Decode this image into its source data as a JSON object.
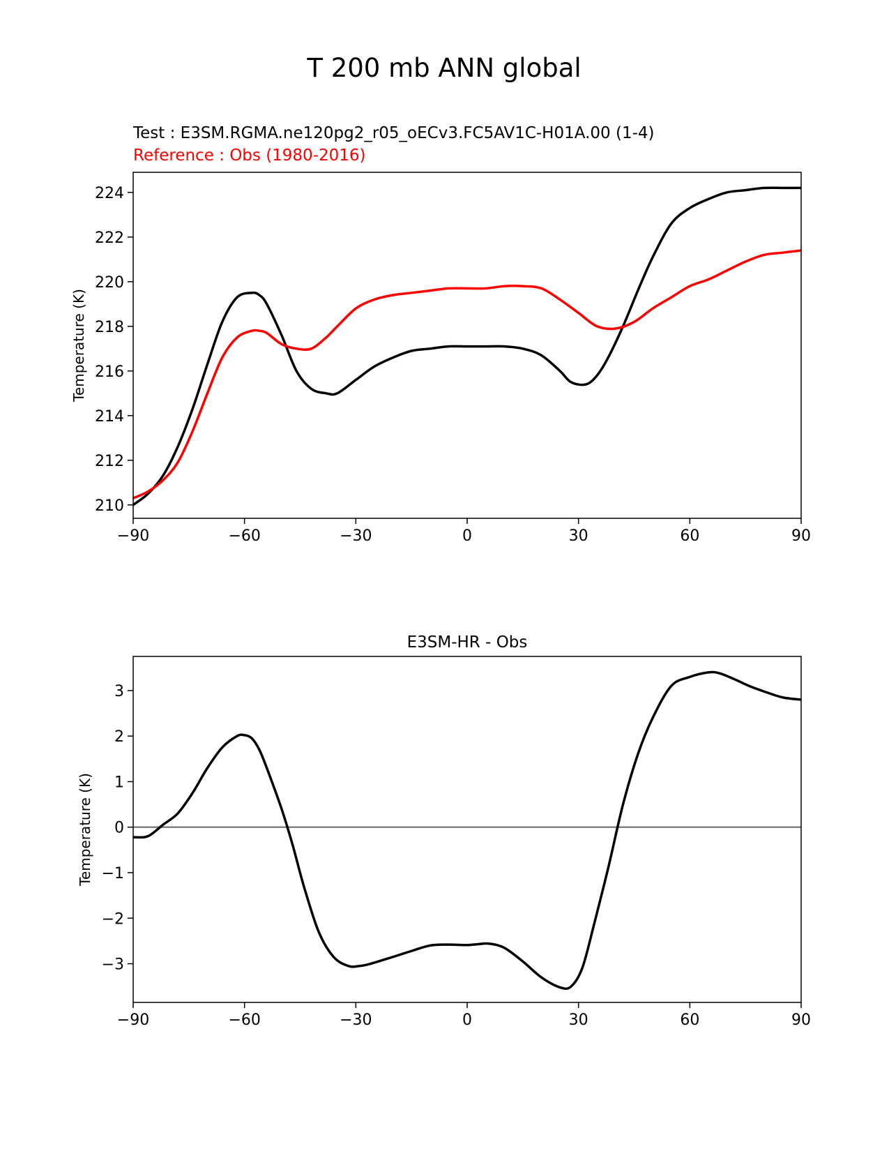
{
  "figure": {
    "title": "T 200 mb ANN global"
  },
  "chart_data": [
    {
      "type": "line",
      "test_label": "Test : E3SM.RGMA.ne120pg2_r05_oECv3.FC5AV1C-H01A.00 (1-4)",
      "reference_label": "Reference : Obs (1980-2016)",
      "xlabel": "",
      "ylabel": "Temperature (K)",
      "xlim": [
        -90,
        90
      ],
      "ylim": [
        209.4,
        224.9
      ],
      "xticks": [
        -90,
        -60,
        -30,
        0,
        30,
        60,
        90
      ],
      "xtick_labels": [
        "−90",
        "−60",
        "−30",
        "0",
        "30",
        "60",
        "90"
      ],
      "yticks": [
        210,
        212,
        214,
        216,
        218,
        220,
        222,
        224
      ],
      "ytick_labels": [
        "210",
        "212",
        "214",
        "216",
        "218",
        "220",
        "222",
        "224"
      ],
      "colors": {
        "test": "#000000",
        "reference": "#ff0000"
      },
      "series": [
        {
          "key": "test",
          "x": [
            -90,
            -86,
            -82,
            -78,
            -74,
            -70,
            -66,
            -62,
            -58,
            -56,
            -54,
            -50,
            -46,
            -42,
            -38,
            -35,
            -30,
            -25,
            -20,
            -15,
            -10,
            -5,
            0,
            5,
            10,
            15,
            20,
            25,
            28,
            32,
            35,
            38,
            42,
            46,
            50,
            55,
            60,
            65,
            70,
            75,
            80,
            85,
            90
          ],
          "y": [
            210.0,
            210.5,
            211.3,
            212.6,
            214.3,
            216.3,
            218.2,
            219.3,
            219.5,
            219.4,
            219.0,
            217.6,
            216.0,
            215.2,
            215.0,
            215.0,
            215.6,
            216.2,
            216.6,
            216.9,
            217.0,
            217.1,
            217.1,
            217.1,
            217.1,
            217.0,
            216.7,
            216.0,
            215.5,
            215.4,
            215.8,
            216.6,
            218.0,
            219.6,
            221.1,
            222.6,
            223.3,
            223.7,
            224.0,
            224.1,
            224.2,
            224.2,
            224.2
          ]
        },
        {
          "key": "reference",
          "x": [
            -90,
            -86,
            -82,
            -78,
            -74,
            -70,
            -66,
            -62,
            -58,
            -56,
            -54,
            -50,
            -46,
            -42,
            -38,
            -35,
            -30,
            -25,
            -20,
            -15,
            -10,
            -5,
            0,
            5,
            10,
            15,
            20,
            25,
            30,
            35,
            40,
            45,
            50,
            55,
            60,
            65,
            70,
            75,
            80,
            85,
            90
          ],
          "y": [
            210.3,
            210.6,
            211.1,
            211.9,
            213.3,
            215.0,
            216.6,
            217.5,
            217.8,
            217.8,
            217.7,
            217.2,
            217.0,
            217.0,
            217.5,
            218.0,
            218.8,
            219.2,
            219.4,
            219.5,
            219.6,
            219.7,
            219.7,
            219.7,
            219.8,
            219.8,
            219.7,
            219.2,
            218.6,
            218.0,
            217.9,
            218.2,
            218.8,
            219.3,
            219.8,
            220.1,
            220.5,
            220.9,
            221.2,
            221.3,
            221.4
          ]
        }
      ]
    },
    {
      "type": "line",
      "title": "E3SM-HR - Obs",
      "xlabel": "",
      "ylabel": "Temperature (K)",
      "xlim": [
        -90,
        90
      ],
      "ylim": [
        -3.85,
        3.75
      ],
      "xticks": [
        -90,
        -60,
        -30,
        0,
        30,
        60,
        90
      ],
      "xtick_labels": [
        "−90",
        "−60",
        "−30",
        "0",
        "30",
        "60",
        "90"
      ],
      "yticks": [
        -3,
        -2,
        -1,
        0,
        1,
        2,
        3
      ],
      "ytick_labels": [
        "−3",
        "−2",
        "−1",
        "0",
        "1",
        "2",
        "3"
      ],
      "zero_line_color": "#808080",
      "colors": {
        "difference": "#000000"
      },
      "series": [
        {
          "key": "difference",
          "x": [
            -90,
            -87,
            -85,
            -82,
            -78,
            -74,
            -70,
            -66,
            -62,
            -60,
            -58,
            -56,
            -54,
            -50,
            -47,
            -44,
            -40,
            -36,
            -32,
            -29,
            -26,
            -20,
            -15,
            -10,
            -5,
            0,
            3,
            6,
            10,
            15,
            20,
            25,
            28,
            31,
            34,
            38,
            42,
            46,
            50,
            55,
            60,
            65,
            68,
            72,
            76,
            80,
            85,
            90
          ],
          "y": [
            -0.22,
            -0.22,
            -0.15,
            0.05,
            0.3,
            0.75,
            1.3,
            1.75,
            2.0,
            2.02,
            1.95,
            1.7,
            1.3,
            0.4,
            -0.4,
            -1.3,
            -2.3,
            -2.85,
            -3.05,
            -3.05,
            -3.0,
            -2.85,
            -2.72,
            -2.6,
            -2.58,
            -2.59,
            -2.57,
            -2.56,
            -2.65,
            -2.95,
            -3.3,
            -3.52,
            -3.5,
            -3.1,
            -2.2,
            -0.9,
            0.5,
            1.6,
            2.4,
            3.1,
            3.3,
            3.4,
            3.38,
            3.25,
            3.1,
            2.98,
            2.85,
            2.8
          ]
        }
      ]
    }
  ]
}
